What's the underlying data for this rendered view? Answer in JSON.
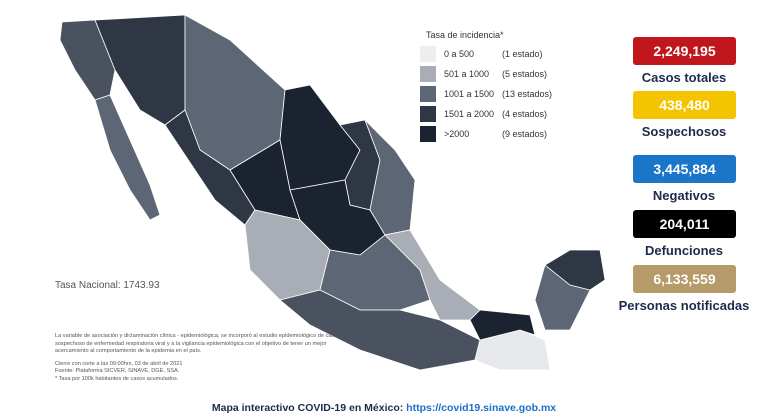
{
  "legend": {
    "title": "Tasa de incidencia*",
    "items": [
      {
        "range": "0 a 500",
        "count": "(1 estado)"
      },
      {
        "range": "501 a 1000",
        "count": "(5 estados)"
      },
      {
        "range": "1001 a 1500",
        "count": "(13 estados)"
      },
      {
        "range": "1501 a 2000",
        "count": "(4 estados)"
      },
      {
        "range": ">2000",
        "count": "(9 estados)"
      }
    ]
  },
  "stats": [
    {
      "value": "2,249,195",
      "label": "Casos totales"
    },
    {
      "value": "438,480",
      "label": "Sospechosos"
    },
    {
      "value": "3,445,884",
      "label": "Negativos"
    },
    {
      "value": "204,011",
      "label": "Defunciones"
    },
    {
      "value": "6,133,559",
      "label": "Personas notificadas"
    }
  ],
  "national_rate": "Tasa Nacional: 1743.93",
  "notes": {
    "paragraph": "La variable de asociación y dictaminación clínica - epidemiológica, se incorporó al estudio epidemiológico de caso sospechoso de enfermedad respiratoria viral y a la vigilancia epidemiológica con el objetivo de tener un mejor acercamiento al comportamiento de la epidemia en el país.",
    "cutoff": "Cierre con corte a las 09:00hrs, 03 de abril de 2021",
    "source": "Fuente: Plataforma SICVER, SINAVE, DGE, SSA.",
    "footnote": "* Tasa por 100k habitantes de casos acumulados."
  },
  "footer": {
    "text": "Mapa interactivo COVID-19 en México:",
    "link": "https://covid19.sinave.gob.mx"
  }
}
